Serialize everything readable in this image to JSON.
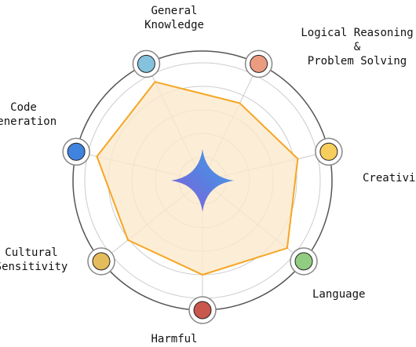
{
  "chart_data": {
    "type": "radar",
    "categories": [
      [
        "General",
        "Knowledge"
      ],
      [
        "Logical Reasoning",
        "&",
        "Problem Solving"
      ],
      [
        "Creativity"
      ],
      [
        "Language"
      ],
      [
        "Harmful"
      ],
      [
        "Cultural",
        "Sensitivity"
      ],
      [
        "Code",
        "Generation"
      ]
    ],
    "values": [
      93,
      73,
      83,
      92,
      80,
      81,
      92
    ],
    "color": "#f5a623",
    "fill": "#fbe9cc",
    "ylim": [
      0,
      100
    ],
    "grid": true
  }
}
